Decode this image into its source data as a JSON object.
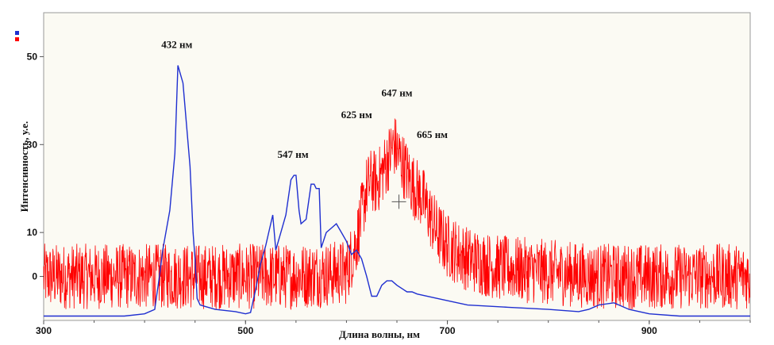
{
  "colors": {
    "background": "#fbfaf3",
    "blue_series": "#1f2fd0",
    "red_series": "#ff0000",
    "axis": "#555555"
  },
  "chart_data": {
    "type": "line",
    "title": "",
    "xlabel": "Длина волны, нм",
    "ylabel": "Интенсивность, у.е.",
    "xlim": [
      300,
      1000
    ],
    "ylim": [
      -10,
      60
    ],
    "x_ticks": [
      300,
      500,
      700,
      900
    ],
    "y_ticks": [
      0,
      10,
      30,
      50
    ],
    "x_tick_labels": [
      "300",
      "500",
      "700",
      "900"
    ],
    "y_tick_labels": [
      "0",
      "10",
      "30",
      "50"
    ],
    "grid": false,
    "legend": "top-left, color markers only",
    "annotations": [
      {
        "text": "432 нм",
        "x": 432,
        "y": 52
      },
      {
        "text": "547 нм",
        "x": 547,
        "y": 27
      },
      {
        "text": "625 нм",
        "x": 610,
        "y": 36
      },
      {
        "text": "647 нм",
        "x": 650,
        "y": 41
      },
      {
        "text": "665 нм",
        "x": 685,
        "y": 31.5
      }
    ],
    "series": [
      {
        "color": "#1f2fd0",
        "style": "smooth",
        "x": [
          300,
          380,
          400,
          410,
          415,
          418,
          425,
          430,
          433,
          438,
          445,
          448,
          450,
          452,
          455,
          470,
          490,
          500,
          505,
          510,
          515,
          520,
          523,
          527,
          530,
          535,
          540,
          545,
          548,
          550,
          553,
          555,
          560,
          565,
          568,
          570,
          573,
          575,
          580,
          585,
          590,
          595,
          600,
          605,
          610,
          615,
          620,
          625,
          630,
          635,
          640,
          645,
          650,
          660,
          665,
          670,
          690,
          720,
          760,
          800,
          830,
          840,
          850,
          865,
          880,
          900,
          930,
          1000
        ],
        "y": [
          -9,
          -9,
          -8.5,
          -7.5,
          0.5,
          6,
          15,
          28,
          48,
          44,
          25,
          10,
          4,
          -5,
          -6.5,
          -7.5,
          -8,
          -8.5,
          -8.2,
          -3,
          3,
          7,
          10,
          14,
          6,
          10,
          14,
          22,
          23,
          23,
          15,
          12,
          13,
          21,
          21,
          20,
          20,
          6.5,
          10,
          11,
          12,
          10,
          8,
          5,
          6,
          4,
          0,
          -4.5,
          -4.5,
          -2,
          -1,
          -1,
          -2,
          -3.5,
          -3.5,
          -4,
          -5,
          -6.5,
          -7,
          -7.5,
          -8,
          -7.5,
          -6.5,
          -6,
          -7.5,
          -8.5,
          -9,
          -9
        ]
      },
      {
        "color": "#ff0000",
        "style": "noisy",
        "x": [
          300,
          400,
          500,
          540,
          580,
          600,
          610,
          620,
          625,
          630,
          640,
          647,
          655,
          665,
          675,
          690,
          700,
          720,
          750,
          800,
          850,
          900,
          1000
        ],
        "y": [
          0,
          0,
          0,
          0,
          0.5,
          1,
          8,
          20,
          22,
          21,
          26,
          30,
          26,
          21,
          18,
          10,
          7,
          4,
          2,
          1,
          0,
          0,
          0
        ]
      }
    ]
  }
}
